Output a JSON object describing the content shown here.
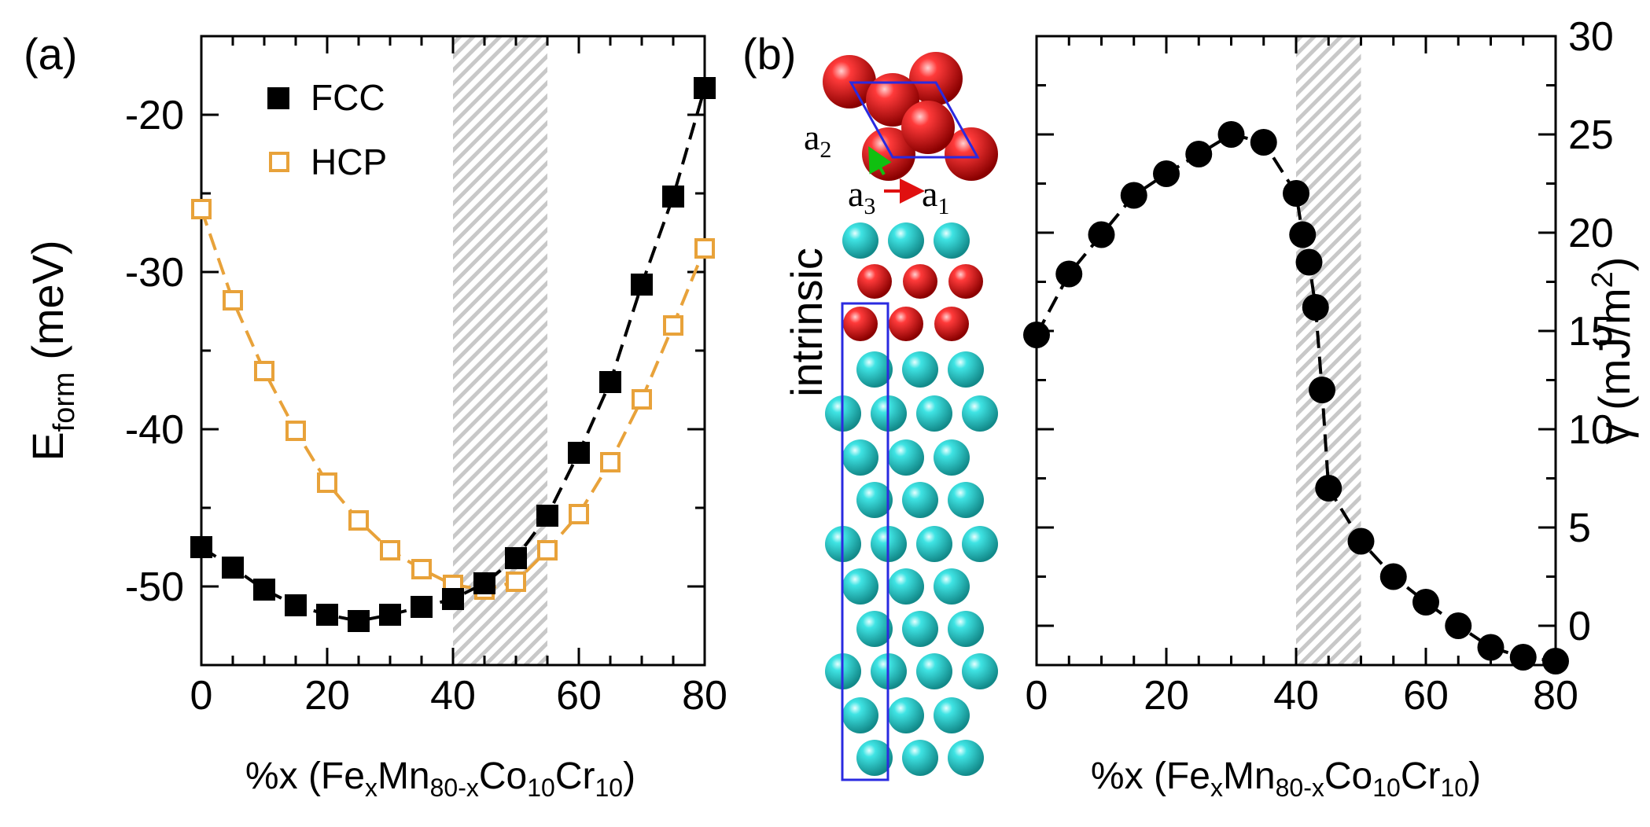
{
  "panels": {
    "a": {
      "label": "(a)"
    },
    "b": {
      "label": "(b)",
      "side_label": "intrinsic"
    }
  },
  "colors": {
    "fcc": "#000000",
    "hcp": "#E8A23A",
    "shade": "#c8c8c8",
    "atom_red": "#d40000",
    "atom_cyan": "#2fd6d6",
    "cell_box": "#2a2ae0",
    "vec_a1": "#e01010",
    "vec_a2": "#10c010"
  },
  "vectors": {
    "a1": "a",
    "a1_sub": "1",
    "a2": "a",
    "a2_sub": "2",
    "a3": "a",
    "a3_sub": "3"
  },
  "chart_data": [
    {
      "type": "line",
      "panel": "a",
      "xlabel": "%x (FexMn80-xCo10Cr10)",
      "xlabel_parts": {
        "pre": "%x (Fe",
        "s1": "x",
        "m1": "Mn",
        "s2": "80-x",
        "m2": "Co",
        "s3": "10",
        "m3": "Cr",
        "s4": "10",
        "post": ")"
      },
      "ylabel": "Eform (meV)",
      "ylabel_parts": {
        "main": "E",
        "sub": "form",
        "unit": " (meV)"
      },
      "xlim": [
        0,
        80
      ],
      "ylim": [
        -55,
        -15
      ],
      "xticks": [
        0,
        20,
        40,
        60,
        80
      ],
      "yticks": [
        -50,
        -40,
        -30,
        -20
      ],
      "legend": "top-left",
      "shaded_region": [
        40,
        55
      ],
      "series": [
        {
          "name": "FCC",
          "marker": "filled-square",
          "x": [
            0,
            5,
            10,
            15,
            20,
            25,
            30,
            35,
            40,
            45,
            50,
            55,
            60,
            65,
            70,
            75,
            80
          ],
          "values": [
            -47.5,
            -48.8,
            -50.2,
            -51.2,
            -51.8,
            -52.2,
            -51.8,
            -51.3,
            -50.8,
            -49.8,
            -48.2,
            -45.5,
            -41.5,
            -37.0,
            -30.8,
            -25.2,
            -18.3
          ]
        },
        {
          "name": "HCP",
          "marker": "open-square",
          "x": [
            0,
            5,
            10,
            15,
            20,
            25,
            30,
            35,
            40,
            45,
            50,
            55,
            60,
            65,
            70,
            75,
            80
          ],
          "values": [
            -26.0,
            -31.8,
            -36.3,
            -40.1,
            -43.4,
            -45.8,
            -47.7,
            -48.9,
            -49.9,
            -50.2,
            -49.7,
            -47.7,
            -45.4,
            -42.1,
            -38.1,
            -33.4,
            -28.5
          ]
        }
      ]
    },
    {
      "type": "line",
      "panel": "b",
      "xlabel": "%x (FexMn80-xCo10Cr10)",
      "xlabel_parts": {
        "pre": "%x (Fe",
        "s1": "x",
        "m1": "Mn",
        "s2": "80-x",
        "m2": "Co",
        "s3": "10",
        "m3": "Cr",
        "s4": "10",
        "post": ")"
      },
      "ylabel": "γ (mJ/m2)",
      "ylabel_parts": {
        "main": "γ (mJ/m",
        "sup": "2",
        "close": ")"
      },
      "xlim": [
        0,
        80
      ],
      "ylim": [
        -2,
        30
      ],
      "xticks": [
        0,
        20,
        40,
        60,
        80
      ],
      "yticks": [
        0,
        5,
        10,
        15,
        20,
        25,
        30
      ],
      "shaded_region": [
        40,
        50
      ],
      "series": [
        {
          "name": "gamma",
          "marker": "filled-circle",
          "x": [
            0,
            5,
            10,
            15,
            20,
            25,
            30,
            35,
            40,
            41,
            42,
            43,
            44,
            45,
            50,
            55,
            60,
            65,
            70,
            75,
            80
          ],
          "values": [
            14.8,
            17.9,
            19.9,
            21.9,
            23.0,
            24.0,
            25.0,
            24.6,
            22.0,
            19.9,
            18.5,
            16.2,
            12.0,
            7.0,
            4.3,
            2.5,
            1.2,
            0.0,
            -1.1,
            -1.6,
            -1.8
          ]
        }
      ]
    }
  ]
}
